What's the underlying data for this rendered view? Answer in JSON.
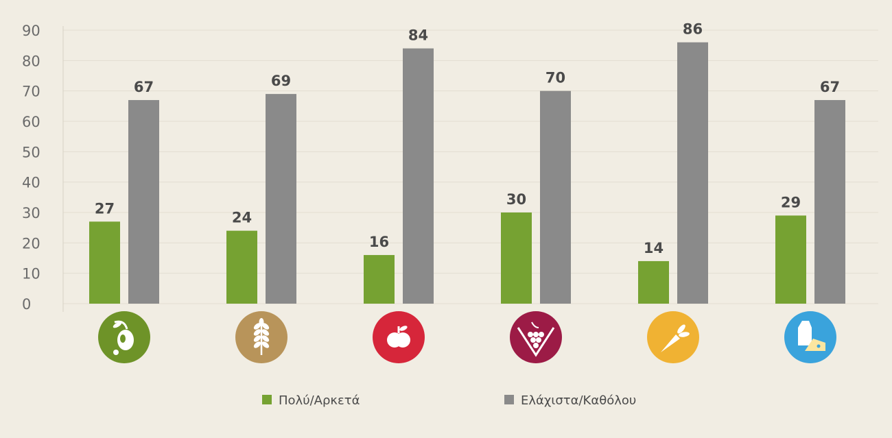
{
  "chart_data": {
    "type": "bar",
    "categories": [
      "olive-icon",
      "wheat-icon",
      "apple-icon",
      "grapes-icon",
      "carrot-icon",
      "dairy-icon"
    ],
    "series": [
      {
        "name": "Πολύ/Αρκετά",
        "color": "#76a232",
        "values": [
          27,
          24,
          16,
          30,
          14,
          29
        ]
      },
      {
        "name": "Ελάχιστα/Καθόλου",
        "color": "#8a8a8a",
        "values": [
          67,
          69,
          84,
          70,
          86,
          67
        ]
      }
    ],
    "category_icons": [
      {
        "icon": "olive-icon",
        "color": "#6e9328"
      },
      {
        "icon": "wheat-icon",
        "color": "#b8945a"
      },
      {
        "icon": "apple-icon",
        "color": "#d6263a"
      },
      {
        "icon": "grapes-icon",
        "color": "#9c1b46"
      },
      {
        "icon": "carrot-icon",
        "color": "#f0b233"
      },
      {
        "icon": "dairy-icon",
        "color": "#3aa3dc"
      }
    ],
    "yticks": [
      "0",
      "10",
      "20",
      "30",
      "40",
      "50",
      "60",
      "70",
      "80",
      "90"
    ],
    "ylim": [
      0,
      90
    ],
    "grid": true,
    "legend": "bottom",
    "title": "",
    "xlabel": "",
    "ylabel": ""
  }
}
